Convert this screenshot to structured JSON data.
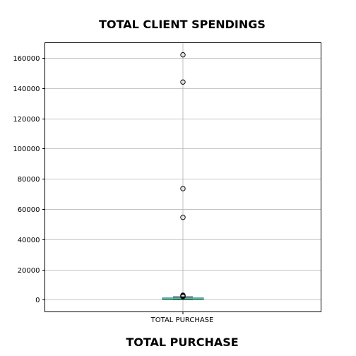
{
  "chart_data": {
    "type": "box",
    "title": "TOTAL CLIENT SPENDINGS",
    "xlabel": "TOTAL PURCHASE",
    "ylabel": "",
    "categories": [
      "TOTAL PURCHASE"
    ],
    "ylim": [
      -8000,
      170000
    ],
    "yticks": [
      0,
      20000,
      40000,
      60000,
      80000,
      100000,
      120000,
      140000,
      160000
    ],
    "grid": true,
    "box": {
      "whisker_low": 0,
      "q1": 100,
      "median": 450,
      "q3": 1200,
      "whisker_high": 1900
    },
    "outliers": [
      2100,
      2400,
      2700,
      3000,
      54500,
      73500,
      144000,
      162000
    ],
    "colors": {
      "box": "#1f77b4",
      "median": "#2ca02c",
      "whisker": "#000000",
      "grid": "#b0b0b0",
      "outlier_edge": "#000000"
    }
  }
}
